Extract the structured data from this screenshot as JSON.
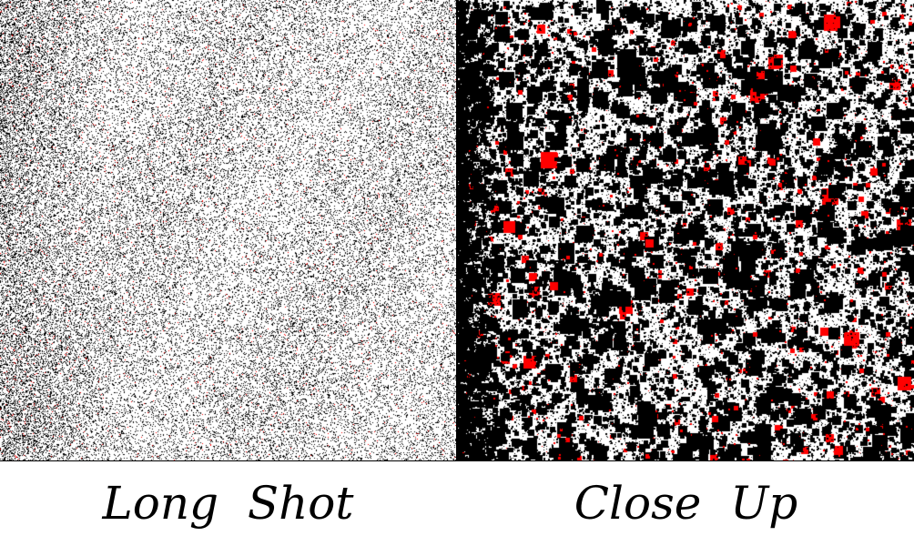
{
  "captions": {
    "left": "Long  Shot",
    "right": "Close  Up"
  },
  "colors": {
    "background": "#ffffff",
    "dots": "#000000",
    "accent_dots": "#ff0000"
  },
  "panels": [
    {
      "name": "long-shot",
      "description_kind": "fine-grain random dot noise"
    },
    {
      "name": "close-up",
      "description_kind": "coarse random dot noise with larger squares"
    }
  ]
}
